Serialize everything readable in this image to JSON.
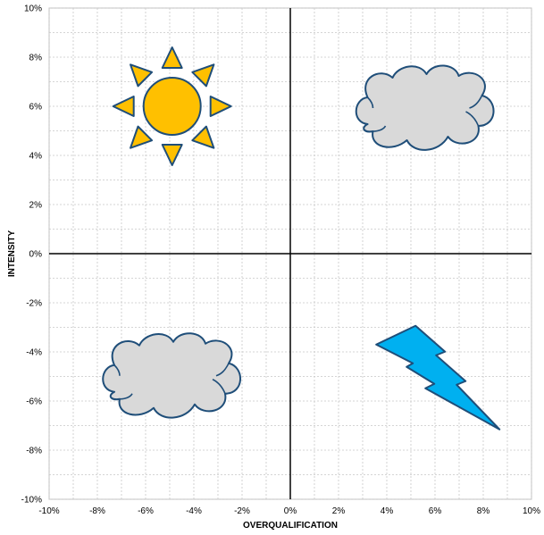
{
  "chart_data": {
    "type": "scatter",
    "title": "",
    "xlabel": "OVERQUALIFICATION",
    "ylabel": "INTENSITY",
    "xlim": [
      -10,
      10
    ],
    "ylim": [
      -10,
      10
    ],
    "x_ticks": [
      "-10%",
      "-8%",
      "-6%",
      "-4%",
      "-2%",
      "0%",
      "2%",
      "4%",
      "6%",
      "8%",
      "10%"
    ],
    "y_ticks": [
      "10%",
      "8%",
      "6%",
      "4%",
      "2%",
      "0%",
      "-2%",
      "-4%",
      "-6%",
      "-8%",
      "-10%"
    ],
    "grid": true,
    "grid_step": 1,
    "tick_step": 2,
    "markers": [
      {
        "name": "sun-icon",
        "x": -4.9,
        "y": 6,
        "fill": "#FFC000",
        "stroke": "#1F4E79"
      },
      {
        "name": "cloud-icon",
        "x": 5.5,
        "y": 6,
        "fill": "#D9D9D9",
        "stroke": "#1F4E79"
      },
      {
        "name": "cloud-icon",
        "x": -5,
        "y": -4.9,
        "fill": "#D9D9D9",
        "stroke": "#1F4E79"
      },
      {
        "name": "lightning-icon",
        "x": 5.6,
        "y": -4.5,
        "fill": "#00B0F0",
        "stroke": "#1F4E79"
      }
    ],
    "colors": {
      "grid": "#C8C8C8",
      "axis": "#000000",
      "frame": "#BFBFBF"
    }
  }
}
